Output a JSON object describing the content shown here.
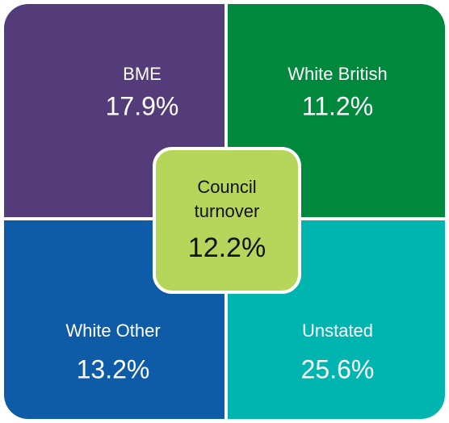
{
  "quadrants": [
    {
      "label": "BME",
      "value": "17.9%"
    },
    {
      "label": "White British",
      "value": "11.2%"
    },
    {
      "label": "White Other",
      "value": "13.2%"
    },
    {
      "label": "Unstated",
      "value": "25.6%"
    }
  ],
  "center": {
    "label_line1": "Council",
    "label_line2": "turnover",
    "value": "12.2%"
  }
}
